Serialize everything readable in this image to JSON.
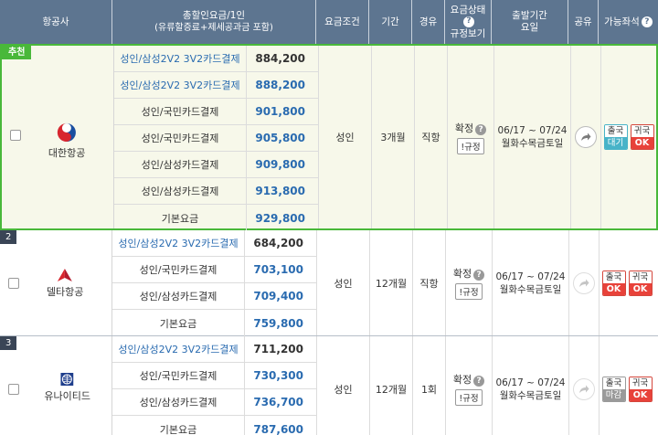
{
  "header": {
    "airline": "항공사",
    "fare_line1": "총할인요금/1인",
    "fare_line2": "(유류할증료+제세공과금 포함)",
    "condition": "요금조건",
    "period": "기간",
    "route": "경유",
    "status_line1": "요금상태",
    "status_line2": "규정보기",
    "dates_line1": "출발기간",
    "dates_line2": "요일",
    "share": "공유",
    "seats": "가능좌석"
  },
  "groups": [
    {
      "badge": "추천",
      "airline": "대한항공",
      "logo_icon": "korean-air-taeguk-icon",
      "fares": [
        {
          "name": "성인/삼성2V2 3V2카드결제",
          "price": "884,200",
          "link": true
        },
        {
          "name": "성인/삼성2V2 3V2카드결제",
          "price": "888,200",
          "link": true
        },
        {
          "name": "성인/국민카드결제",
          "price": "901,800",
          "link": false
        },
        {
          "name": "성인/국민카드결제",
          "price": "905,800",
          "link": false
        },
        {
          "name": "성인/삼성카드결제",
          "price": "909,800",
          "link": false
        },
        {
          "name": "성인/삼성카드결제",
          "price": "913,800",
          "link": false
        },
        {
          "name": "기본요금",
          "price": "929,800",
          "link": false
        }
      ],
      "condition": "성인",
      "period": "3개월",
      "route": "직항",
      "status": "확정",
      "rule_button": "!규정",
      "dates": "06/17 ~ 07/24",
      "days": "월화수목금토일",
      "seats": [
        {
          "label": "출국",
          "state": "대기"
        },
        {
          "label": "귀국",
          "state": "OK"
        }
      ]
    },
    {
      "badge": "2",
      "airline": "델타항공",
      "logo_icon": "delta-widget-icon",
      "fares": [
        {
          "name": "성인/삼성2V2 3V2카드결제",
          "price": "684,200",
          "link": true
        },
        {
          "name": "성인/국민카드결제",
          "price": "703,100",
          "link": false
        },
        {
          "name": "성인/삼성카드결제",
          "price": "709,400",
          "link": false
        },
        {
          "name": "기본요금",
          "price": "759,800",
          "link": false
        }
      ],
      "condition": "성인",
      "period": "12개월",
      "route": "직항",
      "status": "확정",
      "rule_button": "!규정",
      "dates": "06/17 ~ 07/24",
      "days": "월화수목금토일",
      "seats": [
        {
          "label": "출국",
          "state": "OK"
        },
        {
          "label": "귀국",
          "state": "OK"
        }
      ]
    },
    {
      "badge": "3",
      "airline": "유나이티드",
      "logo_icon": "united-globe-icon",
      "fares": [
        {
          "name": "성인/삼성2V2 3V2카드결제",
          "price": "711,200",
          "link": true
        },
        {
          "name": "성인/국민카드결제",
          "price": "730,300",
          "link": false
        },
        {
          "name": "성인/삼성카드결제",
          "price": "736,700",
          "link": false
        },
        {
          "name": "기본요금",
          "price": "787,600",
          "link": false
        }
      ],
      "condition": "성인",
      "period": "12개월",
      "route": "1회",
      "status": "확정",
      "rule_button": "!규정",
      "dates": "06/17 ~ 07/24",
      "days": "월화수목금토일",
      "seats": [
        {
          "label": "출국",
          "state": "마감"
        },
        {
          "label": "귀국",
          "state": "OK"
        }
      ]
    }
  ],
  "colors": {
    "header_bg": "#5d7590",
    "recommend_green": "#49b83a",
    "price_blue": "#2a6bb0",
    "ok_red": "#e8423a",
    "wait_teal": "#48b3c8",
    "closed_gray": "#9a9a9a"
  }
}
